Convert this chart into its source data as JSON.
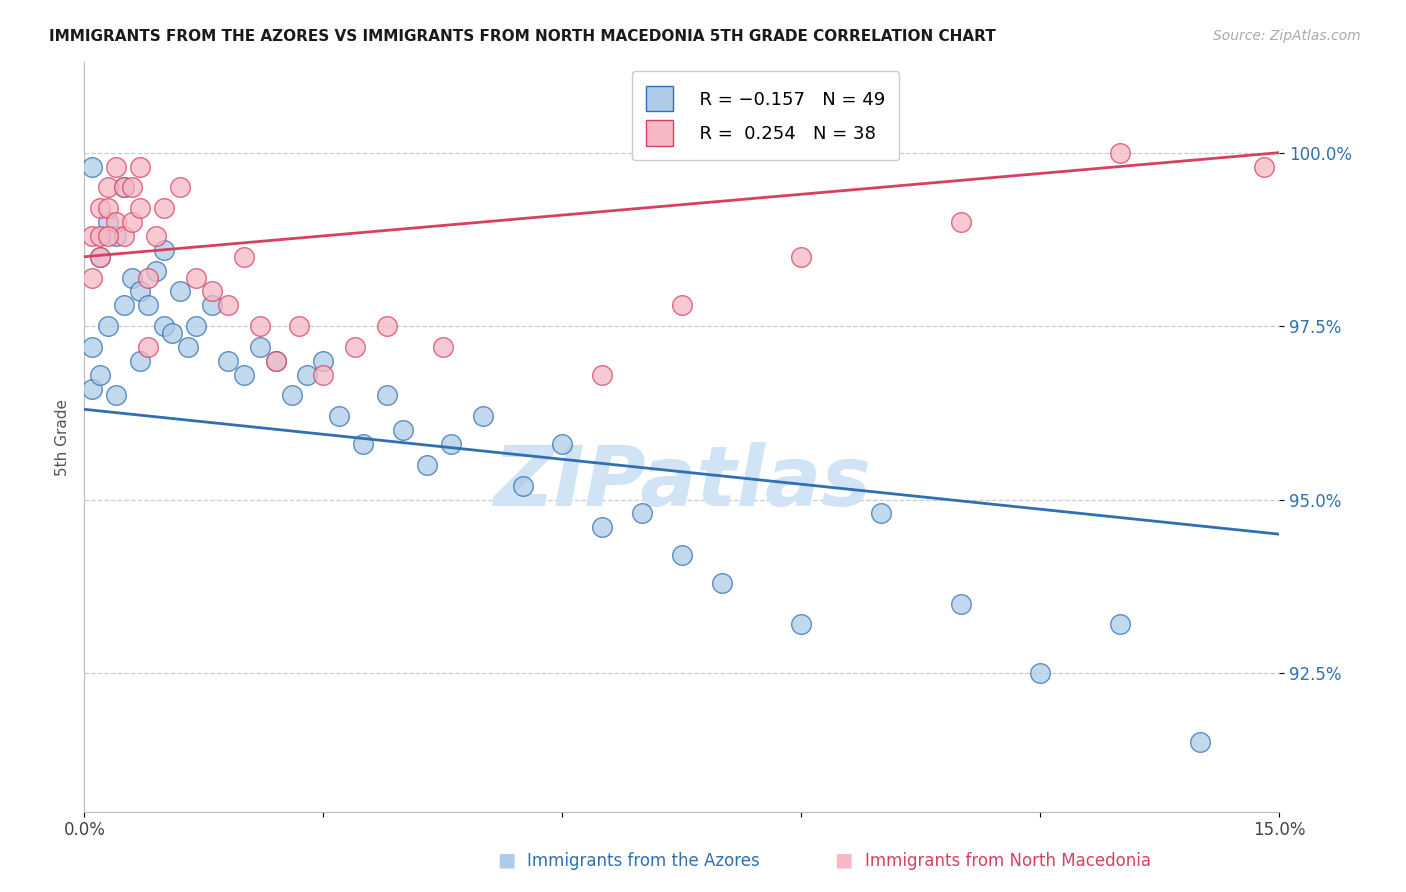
{
  "title": "IMMIGRANTS FROM THE AZORES VS IMMIGRANTS FROM NORTH MACEDONIA 5TH GRADE CORRELATION CHART",
  "source": "Source: ZipAtlas.com",
  "xlabel_blue": "Immigrants from the Azores",
  "xlabel_pink": "Immigrants from North Macedonia",
  "ylabel": "5th Grade",
  "xmin": 0.0,
  "xmax": 0.15,
  "ymin": 90.5,
  "ymax": 101.3,
  "yticks": [
    92.5,
    95.0,
    97.5,
    100.0
  ],
  "ytick_labels": [
    "92.5%",
    "95.0%",
    "97.5%",
    "100.0%"
  ],
  "xticks": [
    0.0,
    0.03,
    0.06,
    0.09,
    0.12,
    0.15
  ],
  "xtick_labels": [
    "0.0%",
    "",
    "",
    "",
    "",
    "15.0%"
  ],
  "legend_blue_r": "R = −0.157",
  "legend_blue_n": "N = 49",
  "legend_pink_r": "R =  0.254",
  "legend_pink_n": "N = 38",
  "blue_color": "#aecce8",
  "pink_color": "#f5b8c4",
  "blue_line_color": "#3070b0",
  "pink_line_color": "#d84060",
  "watermark_color": "#d0e4f5",
  "blue_line_y0": 96.3,
  "blue_line_y1": 94.5,
  "pink_line_y0": 98.5,
  "pink_line_y1": 100.0,
  "blue_x": [
    0.001,
    0.001,
    0.002,
    0.003,
    0.003,
    0.004,
    0.005,
    0.005,
    0.006,
    0.007,
    0.007,
    0.008,
    0.009,
    0.01,
    0.01,
    0.011,
    0.012,
    0.013,
    0.014,
    0.016,
    0.018,
    0.02,
    0.022,
    0.024,
    0.026,
    0.028,
    0.03,
    0.032,
    0.035,
    0.038,
    0.04,
    0.043,
    0.046,
    0.05,
    0.055,
    0.06,
    0.065,
    0.07,
    0.075,
    0.08,
    0.09,
    0.1,
    0.11,
    0.12,
    0.13,
    0.14,
    0.001,
    0.002,
    0.004
  ],
  "blue_y": [
    99.8,
    97.2,
    98.5,
    99.0,
    97.5,
    98.8,
    99.5,
    97.8,
    98.2,
    98.0,
    97.0,
    97.8,
    98.3,
    97.5,
    98.6,
    97.4,
    98.0,
    97.2,
    97.5,
    97.8,
    97.0,
    96.8,
    97.2,
    97.0,
    96.5,
    96.8,
    97.0,
    96.2,
    95.8,
    96.5,
    96.0,
    95.5,
    95.8,
    96.2,
    95.2,
    95.8,
    94.6,
    94.8,
    94.2,
    93.8,
    93.2,
    94.8,
    93.5,
    92.5,
    93.2,
    91.5,
    96.6,
    96.8,
    96.5
  ],
  "pink_x": [
    0.001,
    0.001,
    0.002,
    0.002,
    0.003,
    0.003,
    0.004,
    0.004,
    0.005,
    0.005,
    0.006,
    0.006,
    0.007,
    0.007,
    0.008,
    0.009,
    0.01,
    0.012,
    0.014,
    0.016,
    0.018,
    0.02,
    0.022,
    0.024,
    0.027,
    0.03,
    0.034,
    0.038,
    0.045,
    0.065,
    0.075,
    0.09,
    0.11,
    0.13,
    0.148,
    0.002,
    0.003,
    0.008
  ],
  "pink_y": [
    98.8,
    98.2,
    99.2,
    98.8,
    99.5,
    99.2,
    99.8,
    99.0,
    99.5,
    98.8,
    99.5,
    99.0,
    99.8,
    99.2,
    98.2,
    98.8,
    99.2,
    99.5,
    98.2,
    98.0,
    97.8,
    98.5,
    97.5,
    97.0,
    97.5,
    96.8,
    97.2,
    97.5,
    97.2,
    96.8,
    97.8,
    98.5,
    99.0,
    100.0,
    99.8,
    98.5,
    98.8,
    97.2
  ]
}
